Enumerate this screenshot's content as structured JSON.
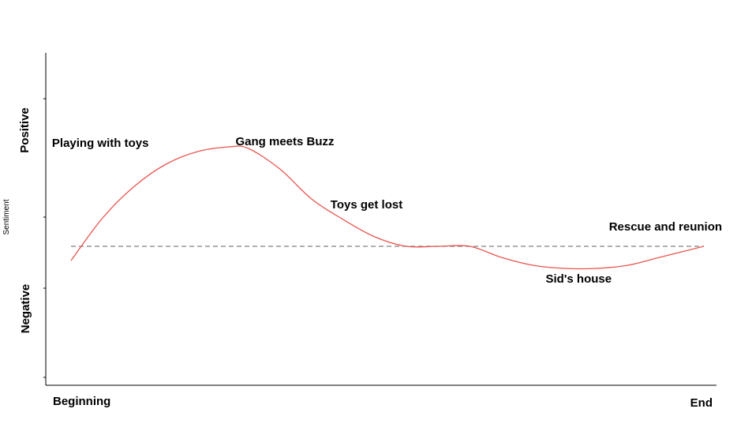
{
  "chart_data": {
    "type": "line",
    "title": "",
    "ylabel": "Sentiment",
    "y_zone_labels": {
      "positive": "Positive",
      "negative": "Negative"
    },
    "x_tick_labels": {
      "start": "Beginning",
      "end": "End"
    },
    "xlim": [
      0,
      100
    ],
    "ylim": [
      -1,
      1
    ],
    "baseline": 0,
    "grid": false,
    "series": [
      {
        "line_color": "#e8544e",
        "x": [
          0,
          5,
          10,
          15,
          20,
          25,
          28,
          33,
          38,
          43,
          48,
          53,
          58,
          63,
          68,
          73,
          78,
          83,
          88,
          93,
          100
        ],
        "y": [
          -0.09,
          0.18,
          0.38,
          0.52,
          0.6,
          0.63,
          0.62,
          0.49,
          0.3,
          0.17,
          0.06,
          0.0,
          0.0,
          0.0,
          -0.07,
          -0.12,
          -0.14,
          -0.14,
          -0.12,
          -0.07,
          0.0
        ]
      }
    ],
    "annotations": [
      {
        "text": "Playing with toys",
        "x": -3,
        "y": 0.63
      },
      {
        "text": "Gang meets Buzz",
        "x": 26,
        "y": 0.64
      },
      {
        "text": "Toys get lost",
        "x": 41,
        "y": 0.24
      },
      {
        "text": "Rescue and reunion",
        "x": 85,
        "y": 0.1
      },
      {
        "text": "Sid's house",
        "x": 75,
        "y": -0.23
      }
    ]
  }
}
